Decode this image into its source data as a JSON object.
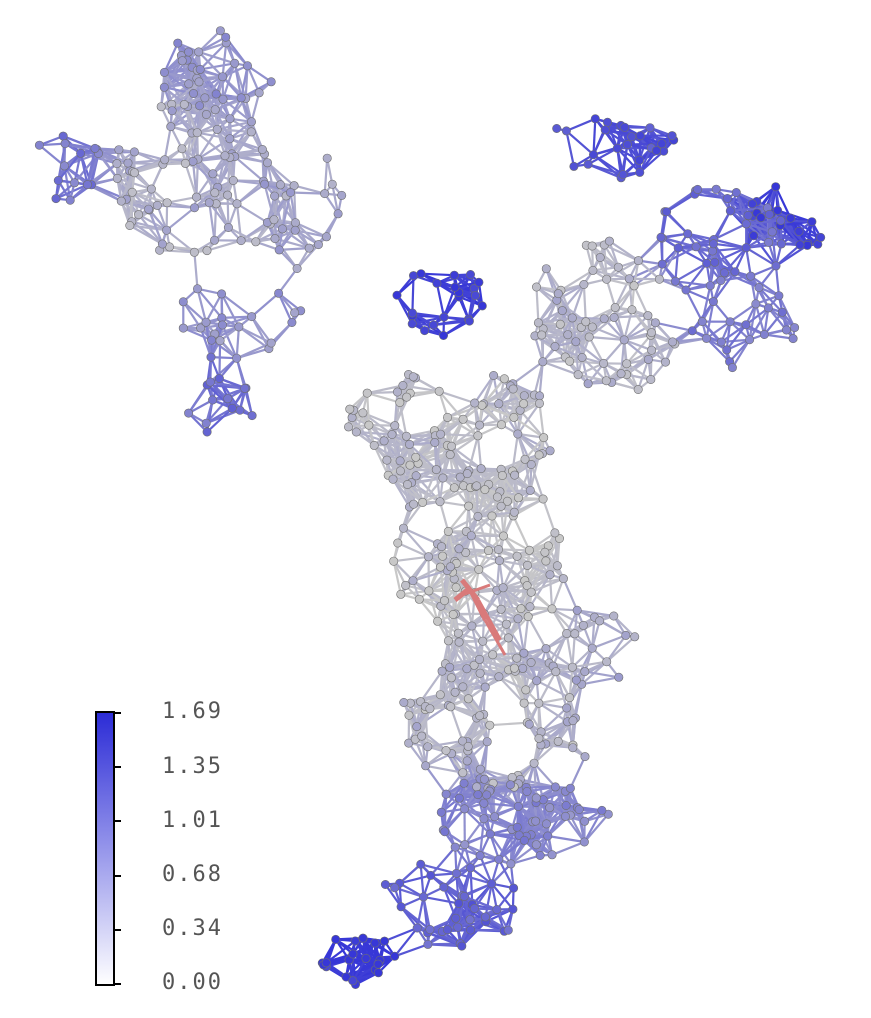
{
  "colorbar": {
    "ticks": [
      "1.69",
      "1.35",
      "1.01",
      "0.68",
      "0.34",
      "0.00"
    ],
    "min": 0.0,
    "max": 1.69,
    "color_low": "#ffffff",
    "color_high": "#2b2bd6"
  },
  "network": {
    "node_color_neutral": "#c8c8c8",
    "edge_color_neutral": "#b4b4b4",
    "highlight_color": "#d97a7a"
  }
}
